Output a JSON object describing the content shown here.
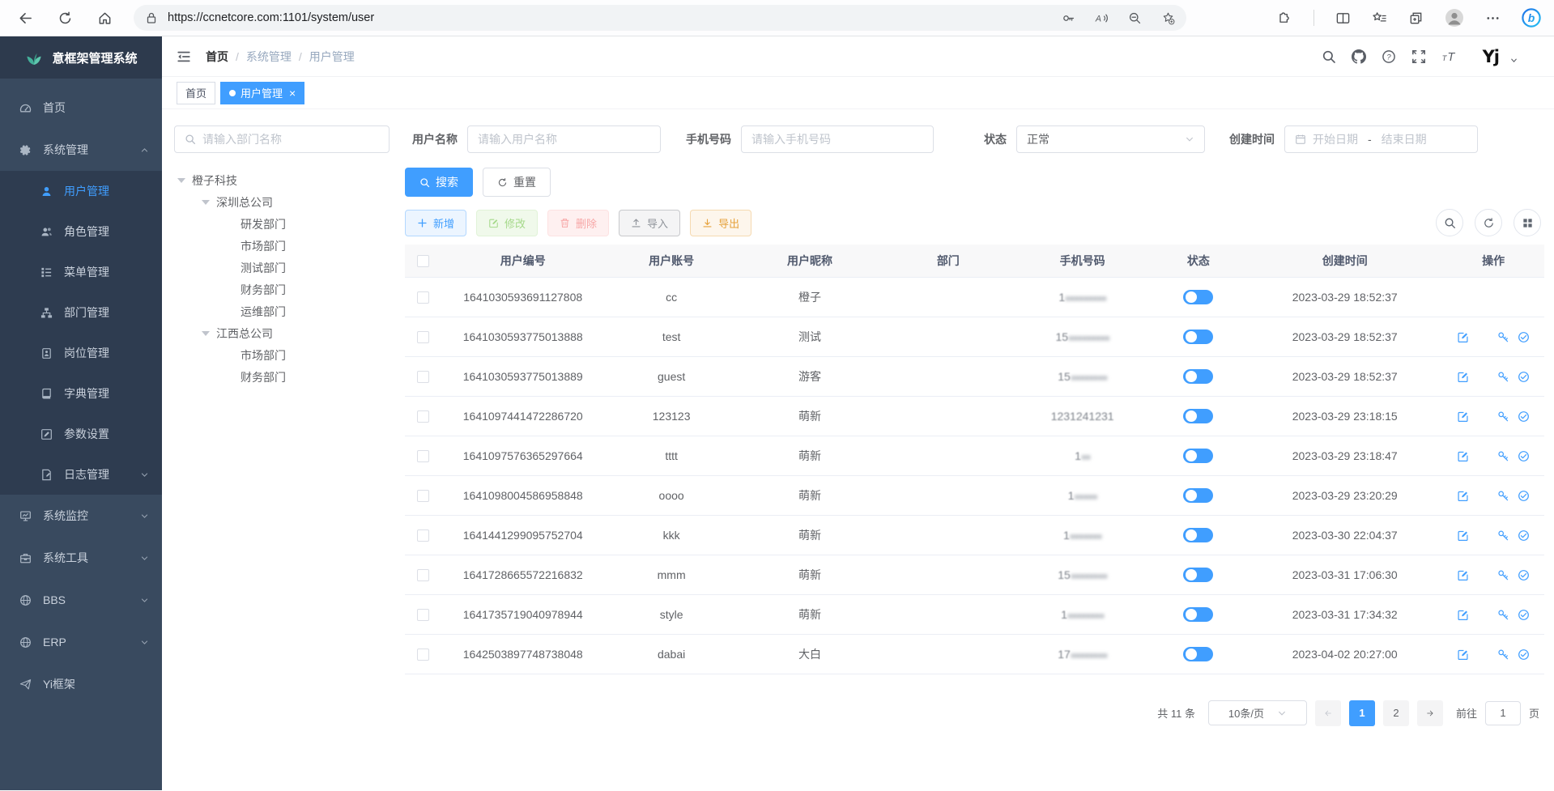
{
  "browser": {
    "url": "https://ccnetcore.com:1101/system/user",
    "left_icons": [
      "back-icon",
      "refresh-icon",
      "home-icon"
    ],
    "pill_left_icon": "lock-icon",
    "pill_right_icons": [
      "password-key-icon",
      "read-aloud-icon",
      "zoom-out-icon",
      "add-favorite-icon"
    ],
    "right_icons": [
      "extensions-icon",
      "split-screen-icon",
      "favorites-icon",
      "collections-icon",
      "profile-icon",
      "more-icon",
      "copilot-icon"
    ]
  },
  "sidebar": {
    "logo_title": "意框架管理系统",
    "items": [
      {
        "key": "home",
        "label": "首页",
        "icon": "dashboard-icon"
      },
      {
        "key": "system-management",
        "label": "系统管理",
        "icon": "gear-icon",
        "expanded": true,
        "children": [
          {
            "key": "user-management",
            "label": "用户管理",
            "icon": "user-icon",
            "active": true
          },
          {
            "key": "role-management",
            "label": "角色管理",
            "icon": "roles-icon"
          },
          {
            "key": "menu-management",
            "label": "菜单管理",
            "icon": "menu-list-icon"
          },
          {
            "key": "dept-management",
            "label": "部门管理",
            "icon": "org-tree-icon"
          },
          {
            "key": "post-management",
            "label": "岗位管理",
            "icon": "badge-icon"
          },
          {
            "key": "dict-management",
            "label": "字典管理",
            "icon": "dictionary-icon"
          },
          {
            "key": "param-settings",
            "label": "参数设置",
            "icon": "param-edit-icon"
          },
          {
            "key": "log-management",
            "label": "日志管理",
            "icon": "log-icon",
            "chevron": "down"
          }
        ]
      },
      {
        "key": "system-monitor",
        "label": "系统监控",
        "icon": "monitor-icon",
        "chevron": "down"
      },
      {
        "key": "system-tools",
        "label": "系统工具",
        "icon": "toolbox-icon",
        "chevron": "down"
      },
      {
        "key": "bbs",
        "label": "BBS",
        "icon": "globe-icon",
        "chevron": "down"
      },
      {
        "key": "erp",
        "label": "ERP",
        "icon": "globe-icon",
        "chevron": "down"
      },
      {
        "key": "yi-framework",
        "label": "Yi框架",
        "icon": "plane-icon"
      }
    ]
  },
  "navbar": {
    "breadcrumb": [
      "首页",
      "系统管理",
      "用户管理"
    ],
    "right_icons": [
      "search-icon",
      "github-icon",
      "help-icon",
      "fullscreen-icon",
      "font-size-icon"
    ],
    "avatar_text": "Yj"
  },
  "tabs": [
    {
      "key": "home",
      "label": "首页",
      "active": false,
      "closable": false
    },
    {
      "key": "user-management",
      "label": "用户管理",
      "active": true,
      "closable": true
    }
  ],
  "filters": {
    "dept_placeholder": "请输入部门名称",
    "username_label": "用户名称",
    "username_placeholder": "请输入用户名称",
    "phone_label": "手机号码",
    "phone_placeholder": "请输入手机号码",
    "status_label": "状态",
    "status_value": "正常",
    "created_label": "创建时间",
    "date_start": "开始日期",
    "date_separator": "-",
    "date_end": "结束日期"
  },
  "tree": [
    {
      "label": "橙子科技",
      "level": 0,
      "expandable": true
    },
    {
      "label": "深圳总公司",
      "level": 1,
      "expandable": true
    },
    {
      "label": "研发部门",
      "level": 2
    },
    {
      "label": "市场部门",
      "level": 2
    },
    {
      "label": "测试部门",
      "level": 2
    },
    {
      "label": "财务部门",
      "level": 2
    },
    {
      "label": "运维部门",
      "level": 2
    },
    {
      "label": "江西总公司",
      "level": 1,
      "expandable": true
    },
    {
      "label": "市场部门",
      "level": 2
    },
    {
      "label": "财务部门",
      "level": 2
    }
  ],
  "buttons": {
    "search": "搜索",
    "reset": "重置",
    "add": "新增",
    "modify": "修改",
    "delete": "删除",
    "import": "导入",
    "export": "导出"
  },
  "table": {
    "columns": [
      "用户编号",
      "用户账号",
      "用户昵称",
      "部门",
      "手机号码",
      "状态",
      "创建时间",
      "操作"
    ],
    "action_icons": [
      "edit-icon",
      "delete-icon",
      "reset-password-icon",
      "assign-role-icon"
    ],
    "rows": [
      {
        "id": "1641030593691127808",
        "account": "cc",
        "nickname": "橙子",
        "dept": "",
        "phone_visible": "1",
        "phone_masked": "●●●●●●●●●",
        "status": true,
        "created": "2023-03-29 18:52:37",
        "actions": false
      },
      {
        "id": "1641030593775013888",
        "account": "test",
        "nickname": "测试",
        "dept": "",
        "phone_visible": "15",
        "phone_masked": "●●●●●●●●●",
        "status": true,
        "created": "2023-03-29 18:52:37",
        "actions": true
      },
      {
        "id": "1641030593775013889",
        "account": "guest",
        "nickname": "游客",
        "dept": "",
        "phone_visible": "15",
        "phone_masked": "●●●●●●●●",
        "status": true,
        "created": "2023-03-29 18:52:37",
        "actions": true
      },
      {
        "id": "1641097441472286720",
        "account": "123123",
        "nickname": "萌新",
        "dept": "",
        "phone_visible": "1231241231",
        "phone_masked": "",
        "status": true,
        "created": "2023-03-29 23:18:15",
        "actions": true
      },
      {
        "id": "1641097576365297664",
        "account": "tttt",
        "nickname": "萌新",
        "dept": "",
        "phone_visible": "1",
        "phone_masked": "●●",
        "status": true,
        "created": "2023-03-29 23:18:47",
        "actions": true
      },
      {
        "id": "1641098004586958848",
        "account": "oooo",
        "nickname": "萌新",
        "dept": "",
        "phone_visible": "1",
        "phone_masked": "●●●●●",
        "status": true,
        "created": "2023-03-29 23:20:29",
        "actions": true
      },
      {
        "id": "1641441299095752704",
        "account": "kkk",
        "nickname": "萌新",
        "dept": "",
        "phone_visible": "1",
        "phone_masked": "●●●●●●●",
        "status": true,
        "created": "2023-03-30 22:04:37",
        "actions": true
      },
      {
        "id": "1641728665572216832",
        "account": "mmm",
        "nickname": "萌新",
        "dept": "",
        "phone_visible": "15",
        "phone_masked": "●●●●●●●●",
        "status": true,
        "created": "2023-03-31 17:06:30",
        "actions": true
      },
      {
        "id": "1641735719040978944",
        "account": "style",
        "nickname": "萌新",
        "dept": "",
        "phone_visible": "1",
        "phone_masked": "●●●●●●●●",
        "status": true,
        "created": "2023-03-31 17:34:32",
        "actions": true
      },
      {
        "id": "1642503897748738048",
        "account": "dabai",
        "nickname": "大白",
        "dept": "",
        "phone_visible": "17",
        "phone_masked": "●●●●●●●●",
        "status": true,
        "created": "2023-04-02 20:27:00",
        "actions": true
      }
    ]
  },
  "pagination": {
    "total": "共 11 条",
    "page_size": "10条/页",
    "pages": [
      "1",
      "2"
    ],
    "active_page": "1",
    "goto_label": "前往",
    "goto_value": "1",
    "unit_label": "页"
  }
}
